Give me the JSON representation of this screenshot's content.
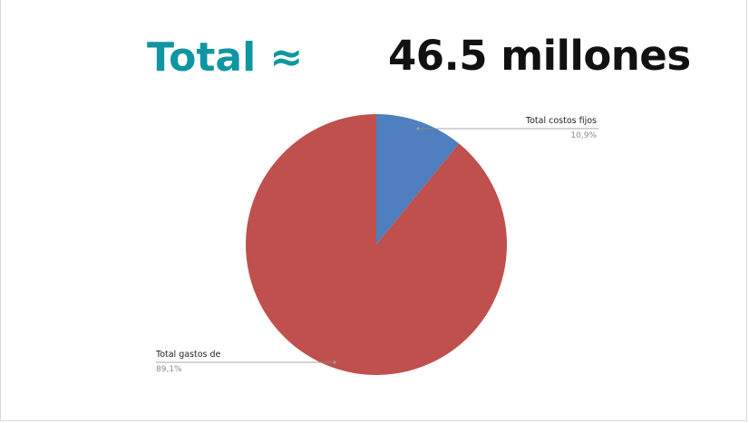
{
  "header": {
    "label": "Total ≈",
    "amount": "46.5 millones"
  },
  "colors": {
    "label": "#0f96a2",
    "fixed_costs": "#4f7fbe",
    "expenses": "#c0504d",
    "leader": "#8c8c8c"
  },
  "chart_data": {
    "type": "pie",
    "slices": [
      {
        "label": "Total costos fijos",
        "value_label": "10,9%",
        "value": 10.9,
        "color": "#4f7fbe"
      },
      {
        "label": "Total gastos de",
        "value_label": "89,1%",
        "value": 89.1,
        "color": "#c0504d"
      }
    ],
    "title": "",
    "legend": "none",
    "start_angle": "12 o'clock",
    "direction": "clockwise"
  }
}
